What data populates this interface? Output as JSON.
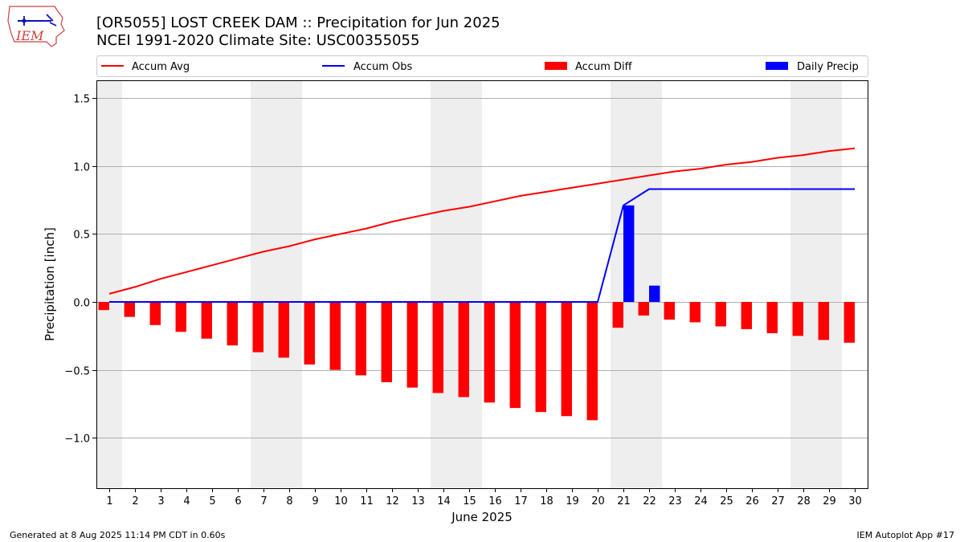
{
  "header": {
    "title_line1": "[OR5055] LOST CREEK DAM :: Precipitation for Jun 2025",
    "title_line2": "NCEI 1991-2020 Climate Site: USC00355055",
    "logo_text": "IEM"
  },
  "footer": {
    "left": "Generated at 8 Aug 2025 11:14 PM CDT in 0.60s",
    "right": "IEM Autoplot App #17"
  },
  "colors": {
    "accum_avg": "#ff0000",
    "accum_obs": "#0000ff",
    "accum_diff": "#ff0000",
    "daily_precip": "#0000ff",
    "weekend_shade": "#eeeeee",
    "grid": "#b0b0b0"
  },
  "chart_data": {
    "type": "bar",
    "xlabel": "June 2025",
    "ylabel": "Precipitation [inch]",
    "ylim": [
      -1.37,
      1.63
    ],
    "yticks": [
      -1.0,
      -0.5,
      0.0,
      0.5,
      1.0,
      1.5
    ],
    "ytick_labels": [
      "−1.0",
      "−0.5",
      "0.0",
      "0.5",
      "1.0",
      "1.5"
    ],
    "grid": true,
    "legend_position": "top",
    "x": [
      1,
      2,
      3,
      4,
      5,
      6,
      7,
      8,
      9,
      10,
      11,
      12,
      13,
      14,
      15,
      16,
      17,
      18,
      19,
      20,
      21,
      22,
      23,
      24,
      25,
      26,
      27,
      28,
      29,
      30
    ],
    "x_tick_labels": [
      "1",
      "2",
      "3",
      "4",
      "5",
      "6",
      "7",
      "8",
      "9",
      "10",
      "11",
      "12",
      "13",
      "14",
      "15",
      "16",
      "17",
      "18",
      "19",
      "20",
      "21",
      "22",
      "23",
      "24",
      "25",
      "26",
      "27",
      "28",
      "29",
      "30"
    ],
    "weekend_days": [
      1,
      7,
      8,
      14,
      15,
      21,
      22,
      28,
      29
    ],
    "series": [
      {
        "name": "Accum Avg",
        "kind": "line",
        "values": [
          0.06,
          0.11,
          0.17,
          0.22,
          0.27,
          0.32,
          0.37,
          0.41,
          0.46,
          0.5,
          0.54,
          0.59,
          0.63,
          0.67,
          0.7,
          0.74,
          0.78,
          0.81,
          0.84,
          0.87,
          0.9,
          0.93,
          0.96,
          0.98,
          1.01,
          1.03,
          1.06,
          1.08,
          1.11,
          1.13
        ]
      },
      {
        "name": "Accum Obs",
        "kind": "line",
        "values": [
          0,
          0,
          0,
          0,
          0,
          0,
          0,
          0,
          0,
          0,
          0,
          0,
          0,
          0,
          0,
          0,
          0,
          0,
          0,
          0,
          0.71,
          0.83,
          0.83,
          0.83,
          0.83,
          0.83,
          0.83,
          0.83,
          0.83,
          0.83
        ]
      },
      {
        "name": "Accum Diff",
        "kind": "bar",
        "values": [
          -0.06,
          -0.11,
          -0.17,
          -0.22,
          -0.27,
          -0.32,
          -0.37,
          -0.41,
          -0.46,
          -0.5,
          -0.54,
          -0.59,
          -0.63,
          -0.67,
          -0.7,
          -0.74,
          -0.78,
          -0.81,
          -0.84,
          -0.87,
          -0.19,
          -0.1,
          -0.13,
          -0.15,
          -0.18,
          -0.2,
          -0.23,
          -0.25,
          -0.28,
          -0.3
        ]
      },
      {
        "name": "Daily Precip",
        "kind": "bar",
        "values": [
          0,
          0,
          0,
          0,
          0,
          0,
          0,
          0,
          0,
          0,
          0,
          0,
          0,
          0,
          0,
          0,
          0,
          0,
          0,
          0,
          0.71,
          0.12,
          0,
          0,
          0,
          0,
          0,
          0,
          0,
          0
        ]
      }
    ]
  }
}
